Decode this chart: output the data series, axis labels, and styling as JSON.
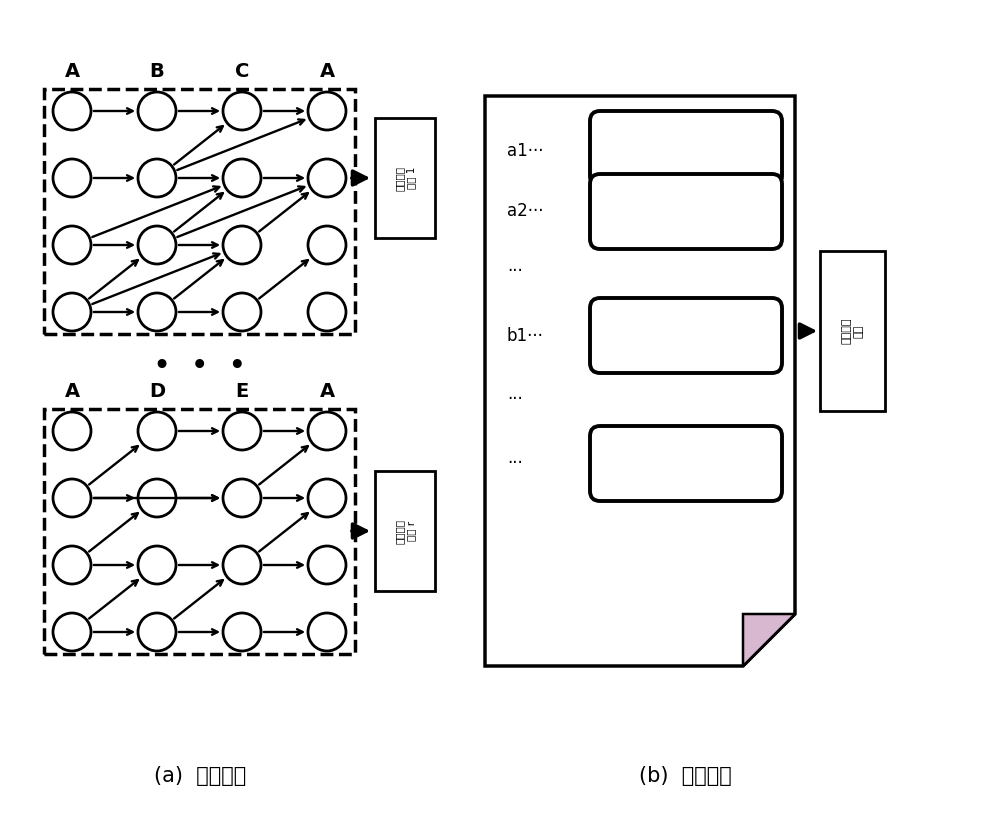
{
  "bg_color": "#ffffff",
  "title_a": "(a)  结构表示",
  "title_b": "(b)  内容表示",
  "box1_cols": [
    "A",
    "B",
    "C",
    "A"
  ],
  "box2_cols": [
    "A",
    "D",
    "E",
    "A"
  ],
  "label1_text": "结构嵌入\n向量 1",
  "label2_text": "结构嵌入\n向量 r",
  "label3_text": "内容嵌入\n向量",
  "row_labels": [
    "a1⋯⋯⋯",
    "a2⋯⋯⋯",
    "⋯⋯⋯",
    "b1⋯⋯⋯",
    "⋯⋯⋯",
    "⋯⋯⋯"
  ],
  "dots_text": "•  •  •"
}
